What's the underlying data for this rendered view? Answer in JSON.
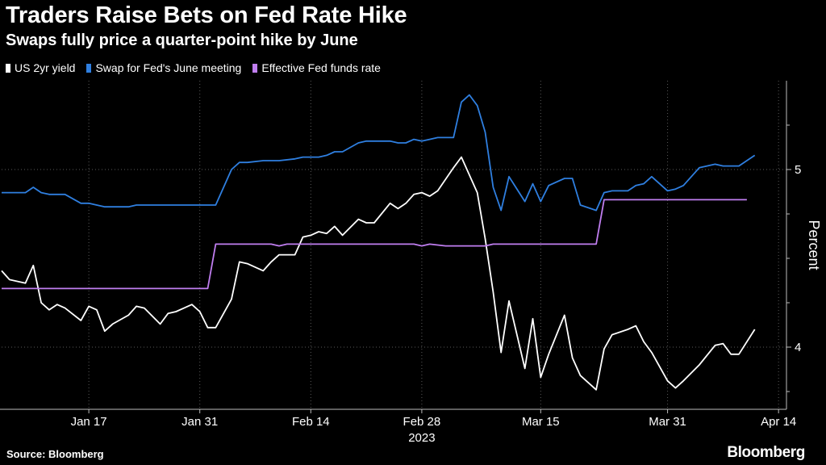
{
  "title": "Traders Raise Bets on Fed Rate Hike",
  "subtitle": "Swaps fully price a quarter-point hike by June",
  "source": "Source: Bloomberg",
  "brand": "Bloomberg",
  "chart_data": {
    "type": "line",
    "ylabel": "Percent",
    "ylim": [
      3.65,
      5.5
    ],
    "y_ticks": [
      4,
      5
    ],
    "x_range": [
      "2023-01-06",
      "2023-04-15"
    ],
    "x_ticks": [
      {
        "date": "2023-01-17",
        "label": "Jan 17"
      },
      {
        "date": "2023-01-31",
        "label": "Jan 31"
      },
      {
        "date": "2023-02-14",
        "label": "Feb 14"
      },
      {
        "date": "2023-02-28",
        "label": "Feb 28"
      },
      {
        "date": "2023-03-15",
        "label": "Mar 15"
      },
      {
        "date": "2023-03-31",
        "label": "Mar 31"
      },
      {
        "date": "2023-04-14",
        "label": "Apr 14"
      }
    ],
    "year_label": "2023",
    "grid": true,
    "legend_position": "top-left",
    "series": [
      {
        "name": "US 2yr yield",
        "color": "#ffffff",
        "points": [
          [
            "2023-01-06",
            4.43
          ],
          [
            "2023-01-07",
            4.38
          ],
          [
            "2023-01-09",
            4.36
          ],
          [
            "2023-01-10",
            4.46
          ],
          [
            "2023-01-11",
            4.25
          ],
          [
            "2023-01-12",
            4.21
          ],
          [
            "2023-01-13",
            4.24
          ],
          [
            "2023-01-14",
            4.22
          ],
          [
            "2023-01-16",
            4.15
          ],
          [
            "2023-01-17",
            4.23
          ],
          [
            "2023-01-18",
            4.21
          ],
          [
            "2023-01-19",
            4.09
          ],
          [
            "2023-01-20",
            4.13
          ],
          [
            "2023-01-22",
            4.18
          ],
          [
            "2023-01-23",
            4.23
          ],
          [
            "2023-01-24",
            4.22
          ],
          [
            "2023-01-26",
            4.13
          ],
          [
            "2023-01-27",
            4.19
          ],
          [
            "2023-01-28",
            4.2
          ],
          [
            "2023-01-30",
            4.24
          ],
          [
            "2023-01-31",
            4.2
          ],
          [
            "2023-02-01",
            4.11
          ],
          [
            "2023-02-02",
            4.11
          ],
          [
            "2023-02-04",
            4.27
          ],
          [
            "2023-02-05",
            4.48
          ],
          [
            "2023-02-06",
            4.47
          ],
          [
            "2023-02-08",
            4.43
          ],
          [
            "2023-02-09",
            4.48
          ],
          [
            "2023-02-10",
            4.52
          ],
          [
            "2023-02-12",
            4.52
          ],
          [
            "2023-02-13",
            4.62
          ],
          [
            "2023-02-14",
            4.63
          ],
          [
            "2023-02-15",
            4.65
          ],
          [
            "2023-02-16",
            4.64
          ],
          [
            "2023-02-17",
            4.68
          ],
          [
            "2023-02-18",
            4.63
          ],
          [
            "2023-02-20",
            4.72
          ],
          [
            "2023-02-21",
            4.7
          ],
          [
            "2023-02-22",
            4.7
          ],
          [
            "2023-02-24",
            4.81
          ],
          [
            "2023-02-25",
            4.78
          ],
          [
            "2023-02-26",
            4.81
          ],
          [
            "2023-02-27",
            4.86
          ],
          [
            "2023-02-28",
            4.87
          ],
          [
            "2023-03-01",
            4.85
          ],
          [
            "2023-03-02",
            4.88
          ],
          [
            "2023-03-04",
            5.01
          ],
          [
            "2023-03-05",
            5.07
          ],
          [
            "2023-03-07",
            4.87
          ],
          [
            "2023-03-08",
            4.61
          ],
          [
            "2023-03-09",
            4.31
          ],
          [
            "2023-03-10",
            3.97
          ],
          [
            "2023-03-11",
            4.26
          ],
          [
            "2023-03-13",
            3.88
          ],
          [
            "2023-03-14",
            4.16
          ],
          [
            "2023-03-15",
            3.83
          ],
          [
            "2023-03-16",
            3.96
          ],
          [
            "2023-03-18",
            4.18
          ],
          [
            "2023-03-19",
            3.94
          ],
          [
            "2023-03-20",
            3.84
          ],
          [
            "2023-03-22",
            3.76
          ],
          [
            "2023-03-23",
            3.99
          ],
          [
            "2023-03-24",
            4.07
          ],
          [
            "2023-03-26",
            4.1
          ],
          [
            "2023-03-27",
            4.12
          ],
          [
            "2023-03-28",
            4.03
          ],
          [
            "2023-03-29",
            3.97
          ],
          [
            "2023-03-31",
            3.81
          ],
          [
            "2023-04-01",
            3.77
          ],
          [
            "2023-04-02",
            3.81
          ],
          [
            "2023-04-04",
            3.9
          ],
          [
            "2023-04-06",
            4.01
          ],
          [
            "2023-04-07",
            4.02
          ],
          [
            "2023-04-08",
            3.96
          ],
          [
            "2023-04-09",
            3.96
          ],
          [
            "2023-04-11",
            4.1
          ]
        ]
      },
      {
        "name": "Swap for Fed's June meeting",
        "color": "#2f7fe0",
        "points": [
          [
            "2023-01-06",
            4.87
          ],
          [
            "2023-01-07",
            4.87
          ],
          [
            "2023-01-09",
            4.87
          ],
          [
            "2023-01-10",
            4.9
          ],
          [
            "2023-01-11",
            4.87
          ],
          [
            "2023-01-12",
            4.86
          ],
          [
            "2023-01-13",
            4.86
          ],
          [
            "2023-01-14",
            4.86
          ],
          [
            "2023-01-16",
            4.81
          ],
          [
            "2023-01-17",
            4.81
          ],
          [
            "2023-01-18",
            4.8
          ],
          [
            "2023-01-19",
            4.79
          ],
          [
            "2023-01-20",
            4.79
          ],
          [
            "2023-01-22",
            4.79
          ],
          [
            "2023-01-23",
            4.8
          ],
          [
            "2023-01-24",
            4.8
          ],
          [
            "2023-01-26",
            4.8
          ],
          [
            "2023-01-27",
            4.8
          ],
          [
            "2023-01-28",
            4.8
          ],
          [
            "2023-01-30",
            4.8
          ],
          [
            "2023-01-31",
            4.8
          ],
          [
            "2023-02-01",
            4.8
          ],
          [
            "2023-02-02",
            4.8
          ],
          [
            "2023-02-04",
            5.0
          ],
          [
            "2023-02-05",
            5.04
          ],
          [
            "2023-02-06",
            5.04
          ],
          [
            "2023-02-08",
            5.05
          ],
          [
            "2023-02-09",
            5.05
          ],
          [
            "2023-02-10",
            5.05
          ],
          [
            "2023-02-12",
            5.06
          ],
          [
            "2023-02-13",
            5.07
          ],
          [
            "2023-02-14",
            5.07
          ],
          [
            "2023-02-15",
            5.07
          ],
          [
            "2023-02-16",
            5.08
          ],
          [
            "2023-02-17",
            5.1
          ],
          [
            "2023-02-18",
            5.1
          ],
          [
            "2023-02-20",
            5.15
          ],
          [
            "2023-02-21",
            5.16
          ],
          [
            "2023-02-22",
            5.16
          ],
          [
            "2023-02-24",
            5.16
          ],
          [
            "2023-02-25",
            5.15
          ],
          [
            "2023-02-26",
            5.15
          ],
          [
            "2023-02-27",
            5.17
          ],
          [
            "2023-02-28",
            5.16
          ],
          [
            "2023-03-01",
            5.17
          ],
          [
            "2023-03-02",
            5.18
          ],
          [
            "2023-03-04",
            5.18
          ],
          [
            "2023-03-05",
            5.38
          ],
          [
            "2023-03-06",
            5.42
          ],
          [
            "2023-03-07",
            5.36
          ],
          [
            "2023-03-08",
            5.21
          ],
          [
            "2023-03-09",
            4.9
          ],
          [
            "2023-03-10",
            4.77
          ],
          [
            "2023-03-11",
            4.96
          ],
          [
            "2023-03-13",
            4.82
          ],
          [
            "2023-03-14",
            4.92
          ],
          [
            "2023-03-15",
            4.82
          ],
          [
            "2023-03-16",
            4.91
          ],
          [
            "2023-03-18",
            4.95
          ],
          [
            "2023-03-19",
            4.95
          ],
          [
            "2023-03-20",
            4.8
          ],
          [
            "2023-03-22",
            4.77
          ],
          [
            "2023-03-23",
            4.87
          ],
          [
            "2023-03-24",
            4.88
          ],
          [
            "2023-03-26",
            4.88
          ],
          [
            "2023-03-27",
            4.91
          ],
          [
            "2023-03-28",
            4.92
          ],
          [
            "2023-03-29",
            4.96
          ],
          [
            "2023-03-31",
            4.88
          ],
          [
            "2023-04-01",
            4.89
          ],
          [
            "2023-04-02",
            4.91
          ],
          [
            "2023-04-04",
            5.01
          ],
          [
            "2023-04-06",
            5.03
          ],
          [
            "2023-04-07",
            5.02
          ],
          [
            "2023-04-08",
            5.02
          ],
          [
            "2023-04-09",
            5.02
          ],
          [
            "2023-04-11",
            5.08
          ]
        ]
      },
      {
        "name": "Effective Fed funds rate",
        "color": "#c07ef0",
        "points": [
          [
            "2023-01-06",
            4.33
          ],
          [
            "2023-02-01",
            4.33
          ],
          [
            "2023-02-02",
            4.58
          ],
          [
            "2023-02-09",
            4.58
          ],
          [
            "2023-02-10",
            4.57
          ],
          [
            "2023-02-11",
            4.58
          ],
          [
            "2023-02-27",
            4.58
          ],
          [
            "2023-02-28",
            4.57
          ],
          [
            "2023-03-01",
            4.58
          ],
          [
            "2023-03-03",
            4.57
          ],
          [
            "2023-03-08",
            4.57
          ],
          [
            "2023-03-09",
            4.58
          ],
          [
            "2023-03-22",
            4.58
          ],
          [
            "2023-03-23",
            4.83
          ],
          [
            "2023-04-10",
            4.83
          ]
        ]
      }
    ]
  }
}
